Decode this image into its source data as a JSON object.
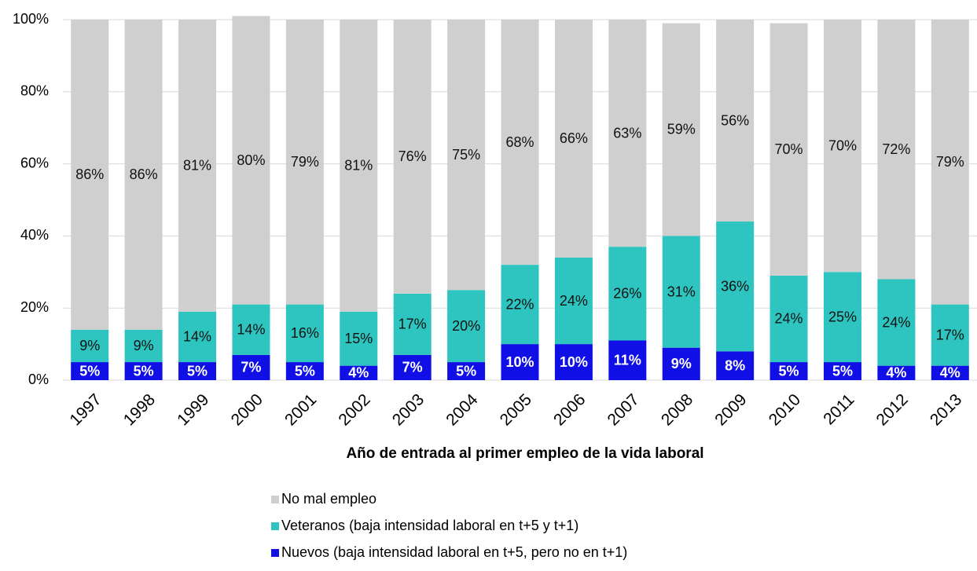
{
  "chart_data": {
    "type": "stacked_bar",
    "x_label": "Año de entrada al primer empleo de la vida laboral",
    "categories": [
      "1997",
      "1998",
      "1999",
      "2000",
      "2001",
      "2002",
      "2003",
      "2004",
      "2005",
      "2006",
      "2007",
      "2008",
      "2009",
      "2010",
      "2011",
      "2012",
      "2013"
    ],
    "series": [
      {
        "name": "Nuevos (baja intensidad laboral en t+5, pero no en t+1)",
        "color": "#1010e6",
        "values": [
          5,
          5,
          5,
          7,
          5,
          4,
          7,
          5,
          10,
          10,
          11,
          9,
          8,
          5,
          5,
          4,
          4
        ],
        "value_labels": [
          "5%",
          "5%",
          "5%",
          "7%",
          "5%",
          "4%",
          "7%",
          "5%",
          "10%",
          "10%",
          "11%",
          "9%",
          "8%",
          "5%",
          "5%",
          "4%",
          "4%"
        ]
      },
      {
        "name": "Veteranos (baja intensidad laboral en t+5 y t+1)",
        "color": "#2ec4c0",
        "values": [
          9,
          9,
          14,
          14,
          16,
          15,
          17,
          20,
          22,
          24,
          26,
          31,
          36,
          24,
          25,
          24,
          17
        ],
        "value_labels": [
          "9%",
          "9%",
          "14%",
          "14%",
          "16%",
          "15%",
          "17%",
          "20%",
          "22%",
          "24%",
          "26%",
          "31%",
          "36%",
          "24%",
          "25%",
          "24%",
          "17%"
        ]
      },
      {
        "name": "No mal empleo",
        "color": "#d0cfd0",
        "values": [
          86,
          86,
          81,
          80,
          79,
          81,
          76,
          75,
          68,
          66,
          63,
          59,
          56,
          70,
          70,
          72,
          79
        ],
        "value_labels": [
          "86%",
          "86%",
          "81%",
          "80%",
          "79%",
          "81%",
          "76%",
          "75%",
          "68%",
          "66%",
          "63%",
          "59%",
          "56%",
          "70%",
          "70%",
          "72%",
          "79%"
        ]
      }
    ],
    "ylim": [
      0,
      100
    ],
    "yticks": [
      {
        "value": 0,
        "label": "0%"
      },
      {
        "value": 20,
        "label": "20%"
      },
      {
        "value": 40,
        "label": "40%"
      },
      {
        "value": 60,
        "label": "60%"
      },
      {
        "value": 80,
        "label": "80%"
      },
      {
        "value": 100,
        "label": "100%"
      }
    ],
    "grid": true
  }
}
